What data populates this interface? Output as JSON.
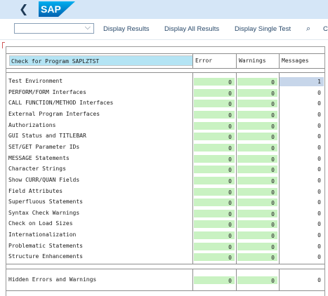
{
  "header": {
    "back_icon": "back-arrow-icon",
    "logo_text": "SAP",
    "logo_color": "#0a6ed1"
  },
  "toolbar": {
    "dropdown_value": "",
    "buttons": [
      "Display Results",
      "Display All Results",
      "Display Single Test"
    ],
    "search_icon": "search-icon",
    "overflow_text": "C"
  },
  "table": {
    "title": "Check for Program SAPLZTST",
    "col_error": "Error",
    "col_warnings": "Warnings",
    "col_messages": "Messages",
    "rows": [
      {
        "label": "Test Environment",
        "error": "0",
        "warnings": "0",
        "messages": "1"
      },
      {
        "label": "PERFORM/FORM Interfaces",
        "error": "0",
        "warnings": "0",
        "messages": "0"
      },
      {
        "label": "CALL FUNCTION/METHOD Interfaces",
        "error": "0",
        "warnings": "0",
        "messages": "0"
      },
      {
        "label": "External Program Interfaces",
        "error": "0",
        "warnings": "0",
        "messages": "0"
      },
      {
        "label": "Authorizations",
        "error": "0",
        "warnings": "0",
        "messages": "0"
      },
      {
        "label": "GUI Status and TITLEBAR",
        "error": "0",
        "warnings": "0",
        "messages": "0"
      },
      {
        "label": "SET/GET Parameter IDs",
        "error": "0",
        "warnings": "0",
        "messages": "0"
      },
      {
        "label": "MESSAGE Statements",
        "error": "0",
        "warnings": "0",
        "messages": "0"
      },
      {
        "label": "Character Strings",
        "error": "0",
        "warnings": "0",
        "messages": "0"
      },
      {
        "label": "Show CURR/QUAN Fields",
        "error": "0",
        "warnings": "0",
        "messages": "0"
      },
      {
        "label": "Field Attributes",
        "error": "0",
        "warnings": "0",
        "messages": "0"
      },
      {
        "label": "Superfluous Statements",
        "error": "0",
        "warnings": "0",
        "messages": "0"
      },
      {
        "label": "Syntax Check Warnings",
        "error": "0",
        "warnings": "0",
        "messages": "0"
      },
      {
        "label": "Check on Load Sizes",
        "error": "0",
        "warnings": "0",
        "messages": "0"
      },
      {
        "label": "Internationalization",
        "error": "0",
        "warnings": "0",
        "messages": "0"
      },
      {
        "label": "Problematic Statements",
        "error": "0",
        "warnings": "0",
        "messages": "0"
      },
      {
        "label": "Structure Enhancements",
        "error": "0",
        "warnings": "0",
        "messages": "0"
      }
    ],
    "summary": {
      "label": "Hidden Errors and Warnings",
      "error": "0",
      "warnings": "0",
      "messages": "0"
    }
  },
  "colors": {
    "header_bg": "#d5e6f7",
    "title_bg": "#b4e4f4",
    "ok_green": "#c9f2c2",
    "selected_blue": "#c7d6ea"
  }
}
